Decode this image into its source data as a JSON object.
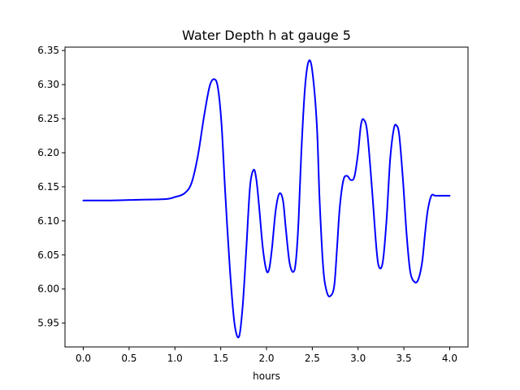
{
  "chart_data": {
    "type": "line",
    "title": "Water Depth h at gauge 5",
    "xlabel": "hours",
    "ylabel": "",
    "xlim": [
      -0.2,
      4.2
    ],
    "ylim": [
      5.915,
      6.355
    ],
    "grid": false,
    "legend": "none",
    "x_ticks": [
      {
        "value": 0.0,
        "label": "0.0"
      },
      {
        "value": 0.5,
        "label": "0.5"
      },
      {
        "value": 1.0,
        "label": "1.0"
      },
      {
        "value": 1.5,
        "label": "1.5"
      },
      {
        "value": 2.0,
        "label": "2.0"
      },
      {
        "value": 2.5,
        "label": "2.5"
      },
      {
        "value": 3.0,
        "label": "3.0"
      },
      {
        "value": 3.5,
        "label": "3.5"
      },
      {
        "value": 4.0,
        "label": "4.0"
      }
    ],
    "y_ticks": [
      {
        "value": 5.95,
        "label": "5.95"
      },
      {
        "value": 6.0,
        "label": "6.00"
      },
      {
        "value": 6.05,
        "label": "6.05"
      },
      {
        "value": 6.1,
        "label": "6.10"
      },
      {
        "value": 6.15,
        "label": "6.15"
      },
      {
        "value": 6.2,
        "label": "6.20"
      },
      {
        "value": 6.25,
        "label": "6.25"
      },
      {
        "value": 6.3,
        "label": "6.30"
      },
      {
        "value": 6.35,
        "label": "6.35"
      }
    ],
    "series": [
      {
        "color": "#0000ff",
        "x": [
          0.0,
          0.3,
          0.6,
          0.9,
          1.0,
          1.1,
          1.18,
          1.25,
          1.32,
          1.38,
          1.43,
          1.47,
          1.51,
          1.55,
          1.6,
          1.65,
          1.7,
          1.74,
          1.78,
          1.82,
          1.86,
          1.89,
          1.92,
          1.96,
          2.0,
          2.03,
          2.06,
          2.1,
          2.14,
          2.18,
          2.21,
          2.25,
          2.29,
          2.32,
          2.35,
          2.38,
          2.42,
          2.46,
          2.5,
          2.55,
          2.58,
          2.62,
          2.66,
          2.7,
          2.74,
          2.77,
          2.8,
          2.84,
          2.88,
          2.92,
          2.96,
          3.0,
          3.03,
          3.06,
          3.1,
          3.15,
          3.2,
          3.23,
          3.27,
          3.31,
          3.35,
          3.39,
          3.42,
          3.45,
          3.49,
          3.53,
          3.57,
          3.62,
          3.66,
          3.7,
          3.73,
          3.76,
          3.8,
          3.84,
          3.88,
          3.92,
          3.96,
          4.0
        ],
        "y": [
          6.13,
          6.13,
          6.131,
          6.132,
          6.135,
          6.14,
          6.155,
          6.195,
          6.255,
          6.298,
          6.308,
          6.295,
          6.24,
          6.14,
          6.03,
          5.95,
          5.93,
          5.975,
          6.06,
          6.15,
          6.175,
          6.16,
          6.12,
          6.06,
          6.027,
          6.03,
          6.06,
          6.115,
          6.14,
          6.13,
          6.09,
          6.04,
          6.025,
          6.04,
          6.1,
          6.2,
          6.295,
          6.334,
          6.32,
          6.24,
          6.13,
          6.03,
          5.995,
          5.99,
          6.005,
          6.06,
          6.12,
          6.16,
          6.166,
          6.16,
          6.165,
          6.2,
          6.24,
          6.249,
          6.23,
          6.15,
          6.06,
          6.032,
          6.04,
          6.1,
          6.19,
          6.235,
          6.24,
          6.225,
          6.16,
          6.08,
          6.025,
          6.01,
          6.015,
          6.04,
          6.08,
          6.115,
          6.137,
          6.137,
          6.137,
          6.137,
          6.137,
          6.137
        ]
      }
    ]
  }
}
